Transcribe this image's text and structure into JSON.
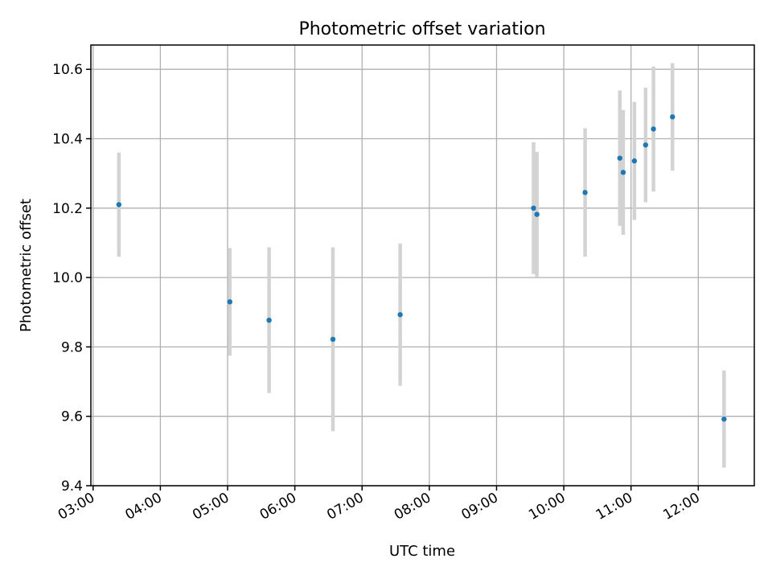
{
  "chart_data": {
    "type": "scatter",
    "title": "Photometric offset variation",
    "xlabel": "UTC time",
    "ylabel": "Photometric offset",
    "x_axis_type": "time",
    "xlim": [
      "02:58",
      "12:50"
    ],
    "ylim": [
      9.4,
      10.67
    ],
    "x_ticks": [
      "03:00",
      "04:00",
      "05:00",
      "06:00",
      "07:00",
      "08:00",
      "09:00",
      "10:00",
      "11:00",
      "12:00"
    ],
    "y_ticks": [
      "9.4",
      "9.6",
      "9.8",
      "10.0",
      "10.2",
      "10.4",
      "10.6"
    ],
    "x_tick_rotation": 30,
    "grid": true,
    "legend": "none",
    "colors": {
      "points": "#1f77b4",
      "errorbars": "#d3d3d3",
      "grid": "#b0b0b0"
    },
    "series": [
      {
        "points": [
          {
            "x": "03:23",
            "y": 10.21,
            "yerr": 0.15
          },
          {
            "x": "05:02",
            "y": 9.93,
            "yerr": 0.155
          },
          {
            "x": "05:37",
            "y": 9.877,
            "yerr": 0.21
          },
          {
            "x": "06:34",
            "y": 9.822,
            "yerr": 0.265
          },
          {
            "x": "07:34",
            "y": 9.893,
            "yerr": 0.205
          },
          {
            "x": "09:33",
            "y": 10.2,
            "yerr": 0.19
          },
          {
            "x": "09:36",
            "y": 10.182,
            "yerr": 0.18
          },
          {
            "x": "10:19",
            "y": 10.245,
            "yerr": 0.185
          },
          {
            "x": "10:50",
            "y": 10.344,
            "yerr": 0.195
          },
          {
            "x": "10:53",
            "y": 10.303,
            "yerr": 0.18
          },
          {
            "x": "11:03",
            "y": 10.336,
            "yerr": 0.17
          },
          {
            "x": "11:13",
            "y": 10.382,
            "yerr": 0.165
          },
          {
            "x": "11:20",
            "y": 10.428,
            "yerr": 0.18
          },
          {
            "x": "11:37",
            "y": 10.463,
            "yerr": 0.155
          },
          {
            "x": "12:23",
            "y": 9.592,
            "yerr": 0.14
          }
        ]
      }
    ]
  }
}
